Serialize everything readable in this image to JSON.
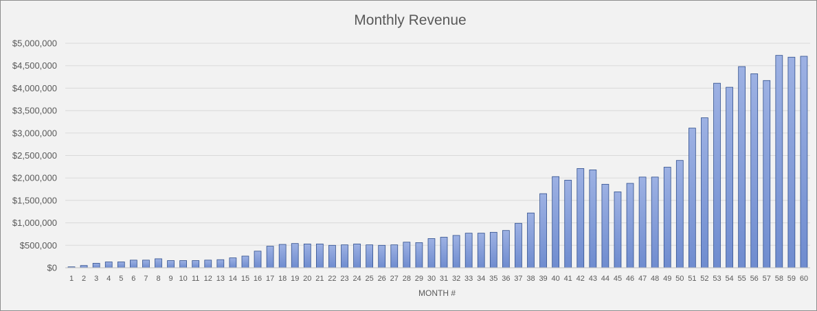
{
  "chart_data": {
    "type": "bar",
    "title": "Monthly Revenue",
    "xlabel": "MONTH #",
    "ylabel": "",
    "ylim": [
      0,
      5000000
    ],
    "y_ticks": [
      0,
      500000,
      1000000,
      1500000,
      2000000,
      2500000,
      3000000,
      3500000,
      4000000,
      4500000,
      5000000
    ],
    "y_tick_labels": [
      "$0",
      "$500,000",
      "$1,000,000",
      "$1,500,000",
      "$2,000,000",
      "$2,500,000",
      "$3,000,000",
      "$3,500,000",
      "$4,000,000",
      "$4,500,000",
      "$5,000,000"
    ],
    "grid": true,
    "legend": "none",
    "bar_color_top": "#9db1e3",
    "bar_color_bottom": "#6f8ccf",
    "bar_outline": "#2f4e8c",
    "categories": [
      "1",
      "2",
      "3",
      "4",
      "5",
      "6",
      "7",
      "8",
      "9",
      "10",
      "11",
      "12",
      "13",
      "14",
      "15",
      "16",
      "17",
      "18",
      "19",
      "20",
      "21",
      "22",
      "23",
      "24",
      "25",
      "26",
      "27",
      "28",
      "29",
      "30",
      "31",
      "32",
      "33",
      "34",
      "35",
      "36",
      "37",
      "38",
      "39",
      "40",
      "41",
      "42",
      "43",
      "44",
      "45",
      "46",
      "47",
      "48",
      "49",
      "50",
      "51",
      "52",
      "53",
      "54",
      "55",
      "56",
      "57",
      "58",
      "59",
      "60"
    ],
    "values": [
      20000,
      50000,
      100000,
      130000,
      130000,
      170000,
      170000,
      200000,
      160000,
      160000,
      160000,
      170000,
      180000,
      220000,
      260000,
      370000,
      480000,
      520000,
      540000,
      530000,
      530000,
      500000,
      510000,
      530000,
      510000,
      500000,
      510000,
      570000,
      560000,
      650000,
      680000,
      720000,
      770000,
      770000,
      790000,
      830000,
      990000,
      1220000,
      1650000,
      2030000,
      1950000,
      2210000,
      2180000,
      1860000,
      1690000,
      1880000,
      2020000,
      2020000,
      2240000,
      2390000,
      3110000,
      3340000,
      4110000,
      4020000,
      4480000,
      4320000,
      4170000,
      4730000,
      4690000,
      4710000
    ]
  }
}
